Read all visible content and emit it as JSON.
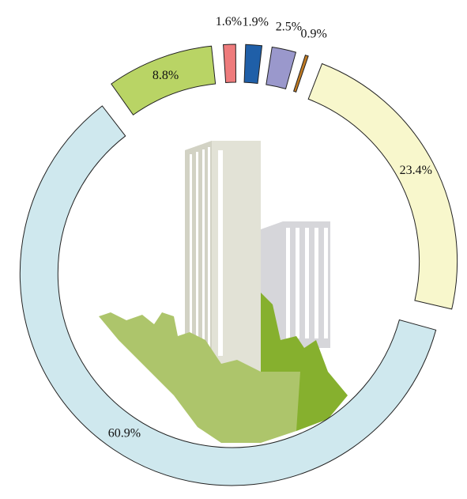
{
  "chart_data": {
    "type": "donut",
    "values": [
      23.4,
      60.9,
      8.8,
      1.6,
      1.9,
      2.5,
      0.9
    ],
    "value_labels": [
      "23.4%",
      "60.9%",
      "8.8%",
      "1.6%",
      "1.9%",
      "2.5%",
      "0.9%"
    ],
    "colors": [
      "#f8f7cc",
      "#cfe8ee",
      "#b9d465",
      "#ee7b7c",
      "#1f5fa8",
      "#9a98cc",
      "#c07a22"
    ]
  }
}
